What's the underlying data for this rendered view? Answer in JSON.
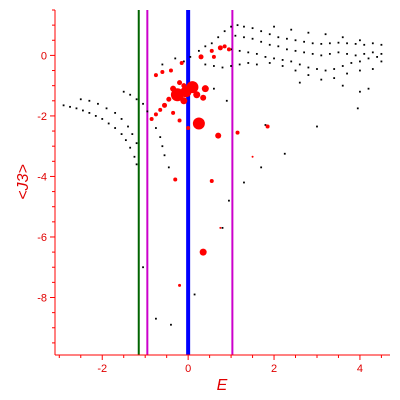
{
  "chart_data": {
    "type": "scatter",
    "title": "",
    "xlabel": "E",
    "ylabel": "<J3>",
    "xlim": [
      -3.1,
      4.7
    ],
    "ylim": [
      -9.9,
      1.5
    ],
    "xticks": [
      -2,
      0,
      2,
      4
    ],
    "yticks": [
      0,
      -2,
      -4,
      -6,
      -8
    ],
    "grid": false,
    "colors": {
      "axis": "#ff0000",
      "text": "#e00000",
      "black_points": "#000000",
      "red_points": "#ff0000",
      "green_line": "#006400",
      "magenta_line": "#cc00cc",
      "blue_line": "#0000ff"
    },
    "vertical_lines": [
      {
        "x": -1.15,
        "color": "#006400",
        "width": 2
      },
      {
        "x": -0.95,
        "color": "#cc00cc",
        "width": 2
      },
      {
        "x": 0.0,
        "color": "#0000ff",
        "width": 4
      },
      {
        "x": 1.03,
        "color": "#cc00cc",
        "width": 2
      }
    ],
    "black_series": [
      {
        "x": -2.9,
        "y": -1.65
      },
      {
        "x": -2.75,
        "y": -1.7
      },
      {
        "x": -2.6,
        "y": -1.75
      },
      {
        "x": -2.45,
        "y": -1.82
      },
      {
        "x": -2.3,
        "y": -1.9
      },
      {
        "x": -2.15,
        "y": -2.0
      },
      {
        "x": -2.0,
        "y": -2.1
      },
      {
        "x": -1.85,
        "y": -2.25
      },
      {
        "x": -1.7,
        "y": -2.4
      },
      {
        "x": -1.55,
        "y": -2.6
      },
      {
        "x": -1.45,
        "y": -2.8
      },
      {
        "x": -1.35,
        "y": -3.05
      },
      {
        "x": -1.25,
        "y": -3.35
      },
      {
        "x": -1.2,
        "y": -3.6
      },
      {
        "x": -2.5,
        "y": -1.45
      },
      {
        "x": -2.3,
        "y": -1.5
      },
      {
        "x": -2.1,
        "y": -1.6
      },
      {
        "x": -1.9,
        "y": -1.75
      },
      {
        "x": -1.7,
        "y": -1.9
      },
      {
        "x": -1.55,
        "y": -2.1
      },
      {
        "x": -1.4,
        "y": -2.35
      },
      {
        "x": -1.3,
        "y": -2.6
      },
      {
        "x": -1.2,
        "y": -2.9
      },
      {
        "x": -1.5,
        "y": -1.2
      },
      {
        "x": -1.35,
        "y": -1.3
      },
      {
        "x": -1.2,
        "y": -1.45
      },
      {
        "x": -1.05,
        "y": -1.6
      },
      {
        "x": -0.95,
        "y": -1.85
      },
      {
        "x": -0.85,
        "y": -2.1
      },
      {
        "x": -0.75,
        "y": -2.4
      },
      {
        "x": -0.65,
        "y": -2.7
      },
      {
        "x": -0.6,
        "y": -3.0
      },
      {
        "x": -0.55,
        "y": -3.3
      },
      {
        "x": -0.45,
        "y": -3.7
      },
      {
        "x": -1.05,
        "y": -7.0
      },
      {
        "x": -0.75,
        "y": -8.7
      },
      {
        "x": -0.4,
        "y": -8.9
      },
      {
        "x": 0.15,
        "y": -7.9
      },
      {
        "x": 0.3,
        "y": -6.5
      },
      {
        "x": 0.8,
        "y": -5.7
      },
      {
        "x": 0.95,
        "y": -4.8
      },
      {
        "x": 1.3,
        "y": -4.2
      },
      {
        "x": 1.7,
        "y": -3.7
      },
      {
        "x": 2.25,
        "y": -3.25
      },
      {
        "x": 3.0,
        "y": -2.35
      },
      {
        "x": 3.95,
        "y": -1.75
      },
      {
        "x": 1.8,
        "y": -2.3
      },
      {
        "x": 0.6,
        "y": -1.1
      },
      {
        "x": 0.9,
        "y": -1.5
      },
      {
        "x": -0.6,
        "y": -0.3
      },
      {
        "x": -0.3,
        "y": -0.1
      },
      {
        "x": -0.1,
        "y": -0.2
      },
      {
        "x": 0.05,
        "y": -0.05
      },
      {
        "x": 0.25,
        "y": 0.15
      },
      {
        "x": 0.4,
        "y": 0.3
      },
      {
        "x": 0.55,
        "y": 0.4
      },
      {
        "x": 0.7,
        "y": 0.6
      },
      {
        "x": 0.85,
        "y": 0.8
      },
      {
        "x": 1.0,
        "y": 0.95
      },
      {
        "x": 1.15,
        "y": 1.0
      },
      {
        "x": 1.3,
        "y": 0.95
      },
      {
        "x": 1.5,
        "y": 0.9
      },
      {
        "x": 1.7,
        "y": 0.8
      },
      {
        "x": 1.9,
        "y": 0.7
      },
      {
        "x": 2.1,
        "y": 0.6
      },
      {
        "x": 2.3,
        "y": 0.55
      },
      {
        "x": 2.5,
        "y": 0.5
      },
      {
        "x": 2.7,
        "y": 0.45
      },
      {
        "x": 2.9,
        "y": 0.4
      },
      {
        "x": 3.1,
        "y": 0.38
      },
      {
        "x": 3.3,
        "y": 0.4
      },
      {
        "x": 3.5,
        "y": 0.42
      },
      {
        "x": 3.7,
        "y": 0.4
      },
      {
        "x": 3.9,
        "y": 0.38
      },
      {
        "x": 4.1,
        "y": 0.35
      },
      {
        "x": 4.3,
        "y": 0.4
      },
      {
        "x": 4.5,
        "y": 0.35
      },
      {
        "x": 1.1,
        "y": 0.65
      },
      {
        "x": 1.3,
        "y": 0.6
      },
      {
        "x": 1.5,
        "y": 0.55
      },
      {
        "x": 1.7,
        "y": 0.45
      },
      {
        "x": 1.9,
        "y": 0.35
      },
      {
        "x": 2.1,
        "y": 0.3
      },
      {
        "x": 2.3,
        "y": 0.2
      },
      {
        "x": 2.5,
        "y": 0.15
      },
      {
        "x": 2.7,
        "y": 0.1
      },
      {
        "x": 2.9,
        "y": 0.05
      },
      {
        "x": 3.1,
        "y": 0.0
      },
      {
        "x": 3.3,
        "y": 0.05
      },
      {
        "x": 3.5,
        "y": 0.1
      },
      {
        "x": 3.7,
        "y": 0.05
      },
      {
        "x": 3.9,
        "y": 0.0
      },
      {
        "x": 4.1,
        "y": 0.05
      },
      {
        "x": 4.3,
        "y": 0.1
      },
      {
        "x": 4.5,
        "y": 0.05
      },
      {
        "x": 1.0,
        "y": 0.2
      },
      {
        "x": 1.2,
        "y": 0.15
      },
      {
        "x": 1.4,
        "y": 0.1
      },
      {
        "x": 1.6,
        "y": 0.05
      },
      {
        "x": 1.8,
        "y": -0.05
      },
      {
        "x": 2.0,
        "y": -0.1
      },
      {
        "x": 2.2,
        "y": -0.15
      },
      {
        "x": 2.4,
        "y": -0.2
      },
      {
        "x": 2.6,
        "y": -0.3
      },
      {
        "x": 2.8,
        "y": -0.4
      },
      {
        "x": 3.0,
        "y": -0.45
      },
      {
        "x": 3.2,
        "y": -0.5
      },
      {
        "x": 3.4,
        "y": -0.45
      },
      {
        "x": 3.6,
        "y": -0.35
      },
      {
        "x": 3.8,
        "y": -0.25
      },
      {
        "x": 4.0,
        "y": -0.2
      },
      {
        "x": 4.2,
        "y": -0.1
      },
      {
        "x": 4.4,
        "y": -0.05
      },
      {
        "x": 0.4,
        "y": -0.3
      },
      {
        "x": 0.6,
        "y": -0.35
      },
      {
        "x": 0.8,
        "y": -0.4
      },
      {
        "x": 1.0,
        "y": -0.35
      },
      {
        "x": 1.2,
        "y": -0.3
      },
      {
        "x": 1.4,
        "y": -0.25
      },
      {
        "x": 1.6,
        "y": -0.3
      },
      {
        "x": 1.9,
        "y": -0.25
      },
      {
        "x": 2.2,
        "y": -0.35
      },
      {
        "x": 2.5,
        "y": -0.5
      },
      {
        "x": 2.8,
        "y": -0.65
      },
      {
        "x": 3.1,
        "y": -0.8
      },
      {
        "x": 3.4,
        "y": -0.75
      },
      {
        "x": 3.7,
        "y": -0.6
      },
      {
        "x": 4.0,
        "y": -0.5
      },
      {
        "x": 4.3,
        "y": -0.45
      },
      {
        "x": 4.5,
        "y": -0.2
      },
      {
        "x": 4.0,
        "y": -1.2
      },
      {
        "x": 4.2,
        "y": -1.1
      },
      {
        "x": 3.6,
        "y": -1.0
      },
      {
        "x": 2.6,
        "y": -0.9
      },
      {
        "x": 2.0,
        "y": 0.95
      },
      {
        "x": 2.4,
        "y": 0.85
      },
      {
        "x": 2.8,
        "y": 0.75
      },
      {
        "x": 3.2,
        "y": 0.7
      },
      {
        "x": 3.6,
        "y": 0.6
      },
      {
        "x": 4.0,
        "y": 0.5
      }
    ],
    "red_series": [
      {
        "x": -0.6,
        "y": -0.55,
        "s": 2
      },
      {
        "x": -0.4,
        "y": -0.5,
        "s": 2
      },
      {
        "x": -0.15,
        "y": -0.25,
        "s": 2
      },
      {
        "x": 0.3,
        "y": -0.05,
        "s": 2.5
      },
      {
        "x": 0.55,
        "y": 0.15,
        "s": 2
      },
      {
        "x": 0.75,
        "y": 0.25,
        "s": 2.5
      },
      {
        "x": 0.85,
        "y": 0.3,
        "s": 2
      },
      {
        "x": 0.95,
        "y": 0.2,
        "s": 2
      },
      {
        "x": 0.6,
        "y": -0.05,
        "s": 2
      },
      {
        "x": -0.2,
        "y": -0.9,
        "s": 2.5
      },
      {
        "x": -0.1,
        "y": -1.0,
        "s": 2.5
      },
      {
        "x": -0.05,
        "y": -1.15,
        "s": 3
      },
      {
        "x": 0.05,
        "y": -1.05,
        "s": 2.5
      },
      {
        "x": -0.25,
        "y": -1.3,
        "s": 6.5
      },
      {
        "x": -0.05,
        "y": -1.2,
        "s": 5.5
      },
      {
        "x": 0.1,
        "y": -1.05,
        "s": 6
      },
      {
        "x": 0.2,
        "y": -1.3,
        "s": 3.5
      },
      {
        "x": 0.4,
        "y": -1.1,
        "s": 3.5
      },
      {
        "x": 0.35,
        "y": -1.4,
        "s": 3
      },
      {
        "x": -0.1,
        "y": -1.5,
        "s": 3.5
      },
      {
        "x": -0.35,
        "y": -1.1,
        "s": 3
      },
      {
        "x": -0.45,
        "y": -1.45,
        "s": 2.5
      },
      {
        "x": -0.55,
        "y": -1.65,
        "s": 2.5
      },
      {
        "x": -0.65,
        "y": -1.8,
        "s": 2
      },
      {
        "x": -0.75,
        "y": -1.95,
        "s": 2
      },
      {
        "x": -0.85,
        "y": -2.1,
        "s": 2
      },
      {
        "x": -0.35,
        "y": -1.9,
        "s": 2
      },
      {
        "x": -0.2,
        "y": -2.15,
        "s": 2
      },
      {
        "x": 0.0,
        "y": -2.4,
        "s": 2
      },
      {
        "x": 0.25,
        "y": -2.25,
        "s": 6
      },
      {
        "x": 0.7,
        "y": -2.65,
        "s": 3
      },
      {
        "x": 1.15,
        "y": -2.55,
        "s": 2
      },
      {
        "x": 1.85,
        "y": -2.35,
        "s": 2
      },
      {
        "x": -0.75,
        "y": -0.65,
        "s": 2
      },
      {
        "x": -0.3,
        "y": -4.1,
        "s": 2
      },
      {
        "x": 0.55,
        "y": -4.15,
        "s": 2
      },
      {
        "x": 0.35,
        "y": -6.5,
        "s": 3.5
      },
      {
        "x": -0.2,
        "y": -7.6,
        "s": 1.5
      },
      {
        "x": 1.5,
        "y": -3.35,
        "s": 1
      },
      {
        "x": 0.75,
        "y": -5.7,
        "s": 1
      }
    ]
  }
}
